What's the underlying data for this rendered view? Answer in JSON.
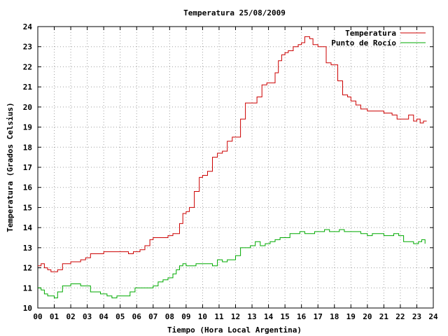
{
  "chart_data": {
    "type": "line",
    "title": "Temperatura 25/08/2009",
    "xlabel": "Tiempo (Hora Local Argentina)",
    "ylabel": "Temperatura (Grados Celsius)",
    "xlim": [
      0,
      24
    ],
    "ylim": [
      10,
      24
    ],
    "x_ticks": [
      "00",
      "01",
      "02",
      "03",
      "04",
      "05",
      "06",
      "07",
      "08",
      "09",
      "10",
      "11",
      "12",
      "13",
      "14",
      "15",
      "16",
      "17",
      "18",
      "19",
      "20",
      "21",
      "22",
      "23",
      "24"
    ],
    "y_ticks": [
      "10",
      "11",
      "12",
      "13",
      "14",
      "15",
      "16",
      "17",
      "18",
      "19",
      "20",
      "21",
      "22",
      "23",
      "24"
    ],
    "grid": true,
    "legend_position": "top-right",
    "series": [
      {
        "name": "Temperatura",
        "color": "#cc0000",
        "x": [
          0,
          0.2,
          0.4,
          0.6,
          0.8,
          1.0,
          1.2,
          1.5,
          1.8,
          2.0,
          2.3,
          2.6,
          2.9,
          3.2,
          3.5,
          3.8,
          4.0,
          4.5,
          5.0,
          5.3,
          5.5,
          5.8,
          6.2,
          6.5,
          6.8,
          7.0,
          7.3,
          7.6,
          7.9,
          8.2,
          8.4,
          8.6,
          8.8,
          9.0,
          9.2,
          9.5,
          9.8,
          10.0,
          10.3,
          10.6,
          10.9,
          11.2,
          11.5,
          11.8,
          12.0,
          12.3,
          12.6,
          12.8,
          13.0,
          13.3,
          13.6,
          13.9,
          14.1,
          14.4,
          14.6,
          14.8,
          15.0,
          15.2,
          15.5,
          15.8,
          16.0,
          16.2,
          16.5,
          16.7,
          17.0,
          17.3,
          17.5,
          17.8,
          18.0,
          18.2,
          18.5,
          18.8,
          19.0,
          19.3,
          19.6,
          20.0,
          20.5,
          21.0,
          21.5,
          21.8,
          22.0,
          22.3,
          22.5,
          22.8,
          23.0,
          23.2,
          23.4,
          23.6
        ],
        "values": [
          12.1,
          12.2,
          12.0,
          11.9,
          11.8,
          11.8,
          11.9,
          12.2,
          12.2,
          12.3,
          12.3,
          12.4,
          12.5,
          12.7,
          12.7,
          12.7,
          12.8,
          12.8,
          12.8,
          12.8,
          12.7,
          12.8,
          12.9,
          13.1,
          13.4,
          13.5,
          13.5,
          13.5,
          13.6,
          13.7,
          13.7,
          14.2,
          14.7,
          14.8,
          15.0,
          15.8,
          16.5,
          16.6,
          16.8,
          17.5,
          17.7,
          17.8,
          18.3,
          18.5,
          18.5,
          19.4,
          20.2,
          20.2,
          20.2,
          20.5,
          21.1,
          21.2,
          21.2,
          21.7,
          22.3,
          22.6,
          22.7,
          22.8,
          23.0,
          23.1,
          23.2,
          23.5,
          23.4,
          23.1,
          23.0,
          23.0,
          22.2,
          22.1,
          22.1,
          21.3,
          20.6,
          20.5,
          20.3,
          20.1,
          19.9,
          19.8,
          19.8,
          19.7,
          19.6,
          19.4,
          19.4,
          19.4,
          19.6,
          19.3,
          19.4,
          19.2,
          19.3,
          19.3
        ]
      },
      {
        "name": "Punto de Rocío",
        "color": "#00aa00",
        "x": [
          0,
          0.2,
          0.4,
          0.6,
          0.8,
          1.0,
          1.2,
          1.5,
          1.8,
          2.0,
          2.3,
          2.6,
          2.9,
          3.2,
          3.5,
          3.8,
          4.0,
          4.2,
          4.5,
          4.8,
          5.0,
          5.3,
          5.6,
          5.9,
          6.2,
          6.5,
          6.8,
          7.0,
          7.3,
          7.6,
          7.9,
          8.2,
          8.4,
          8.6,
          8.8,
          9.0,
          9.3,
          9.6,
          10.0,
          10.3,
          10.6,
          10.9,
          11.2,
          11.5,
          11.8,
          12.0,
          12.3,
          12.6,
          12.9,
          13.2,
          13.5,
          13.8,
          14.1,
          14.4,
          14.7,
          15.0,
          15.3,
          15.6,
          15.9,
          16.2,
          16.5,
          16.8,
          17.1,
          17.4,
          17.7,
          18.0,
          18.3,
          18.6,
          19.0,
          19.3,
          19.6,
          20.0,
          20.3,
          20.6,
          21.0,
          21.3,
          21.6,
          21.9,
          22.2,
          22.5,
          22.8,
          23.1,
          23.3,
          23.5
        ],
        "values": [
          11.0,
          10.9,
          10.7,
          10.6,
          10.6,
          10.5,
          10.8,
          11.1,
          11.1,
          11.2,
          11.2,
          11.1,
          11.1,
          10.8,
          10.8,
          10.7,
          10.7,
          10.6,
          10.5,
          10.6,
          10.6,
          10.6,
          10.8,
          11.0,
          11.0,
          11.0,
          11.0,
          11.1,
          11.3,
          11.4,
          11.5,
          11.7,
          11.9,
          12.1,
          12.2,
          12.1,
          12.1,
          12.2,
          12.2,
          12.2,
          12.1,
          12.4,
          12.3,
          12.4,
          12.4,
          12.6,
          13.0,
          13.0,
          13.1,
          13.3,
          13.1,
          13.2,
          13.3,
          13.4,
          13.5,
          13.5,
          13.7,
          13.7,
          13.8,
          13.7,
          13.7,
          13.8,
          13.8,
          13.9,
          13.8,
          13.8,
          13.9,
          13.8,
          13.8,
          13.8,
          13.7,
          13.6,
          13.7,
          13.7,
          13.6,
          13.6,
          13.7,
          13.6,
          13.3,
          13.3,
          13.2,
          13.3,
          13.4,
          13.2
        ]
      }
    ]
  }
}
